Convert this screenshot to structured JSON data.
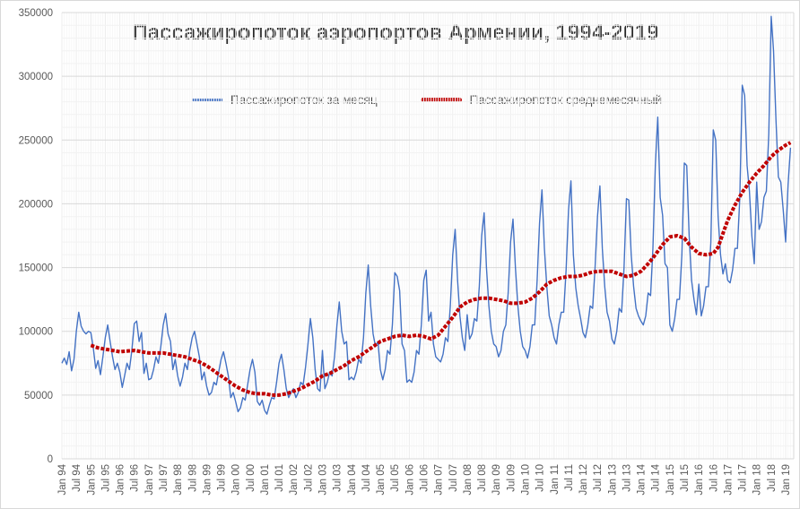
{
  "chart_data": {
    "type": "line",
    "title": "Пассажиропоток аэропортов Армении, 1994-2019",
    "xlabel": "",
    "ylabel": "",
    "x_range": "Jan 1994 – Mar 2019",
    "x_tick_step_months": 6,
    "ylim": [
      0,
      350000
    ],
    "y_tick_step": 50000,
    "grid": true,
    "legend_position": "top",
    "y_tick_labels": [
      "0",
      "50000",
      "100000",
      "150000",
      "200000",
      "250000",
      "300000",
      "350000"
    ],
    "x_tick_labels": [
      "Jan 94",
      "Jul 94",
      "Jan 95",
      "Jul 95",
      "Jan 96",
      "Jul 96",
      "Jan 97",
      "Jul 97",
      "Jan 98",
      "Jul 98",
      "Jan 99",
      "Jul 99",
      "Jan 00",
      "Jul 00",
      "Jan 01",
      "Jul 01",
      "Jan 02",
      "Jul 02",
      "Jan 03",
      "Jul 03",
      "Jan 04",
      "Jul 04",
      "Jan 05",
      "Jul 05",
      "Jan 06",
      "Jul 06",
      "Jan 07",
      "Jul 07",
      "Jan 08",
      "Jul 08",
      "Jan 09",
      "Jul 09",
      "Jan 10",
      "Jul 10",
      "Jan 11",
      "Jul 11",
      "Jan 12",
      "Jul 12",
      "Jan 13",
      "Jul 13",
      "Jan 14",
      "Jul 14",
      "Jan 15",
      "Jul 15",
      "Jan 16",
      "Jul 16",
      "Jan 17",
      "Jul 17",
      "Jan 18",
      "Jul 18",
      "Jan 19"
    ],
    "series": [
      {
        "name": "Пассажиропоток за месяц",
        "color": "#4472C4",
        "style": "thin-solid",
        "start_month": 0,
        "values": [
          75000,
          79000,
          74000,
          84000,
          69000,
          78000,
          100000,
          115000,
          104000,
          100000,
          98000,
          100000,
          99000,
          87000,
          71000,
          77000,
          66000,
          80000,
          95000,
          105000,
          92000,
          80000,
          70000,
          75000,
          68000,
          56000,
          65000,
          75000,
          70000,
          85000,
          106000,
          108000,
          92000,
          99000,
          67000,
          75000,
          62000,
          63000,
          70000,
          80000,
          75000,
          88000,
          105000,
          114000,
          98000,
          92000,
          70000,
          78000,
          65000,
          57000,
          64000,
          75000,
          70000,
          85000,
          95000,
          100000,
          90000,
          80000,
          62000,
          68000,
          57000,
          50000,
          52000,
          60000,
          58000,
          68000,
          78000,
          84000,
          75000,
          65000,
          48000,
          52000,
          45000,
          37000,
          40000,
          48000,
          46000,
          58000,
          70000,
          78000,
          68000,
          45000,
          42000,
          46000,
          38000,
          35000,
          42000,
          48000,
          47000,
          60000,
          75000,
          82000,
          70000,
          55000,
          48000,
          52000,
          55000,
          48000,
          52000,
          60000,
          58000,
          72000,
          90000,
          110000,
          95000,
          70000,
          55000,
          53000,
          85000,
          55000,
          60000,
          68000,
          65000,
          80000,
          105000,
          123000,
          100000,
          90000,
          92000,
          62000,
          64000,
          62000,
          68000,
          78000,
          75000,
          95000,
          130000,
          152000,
          120000,
          98000,
          88000,
          92000,
          70000,
          62000,
          70000,
          85000,
          82000,
          105000,
          146000,
          143000,
          132000,
          90000,
          85000,
          60000,
          62000,
          60000,
          68000,
          85000,
          82000,
          105000,
          140000,
          148000,
          108000,
          115000,
          90000,
          80000,
          78000,
          76000,
          82000,
          95000,
          92000,
          120000,
          160000,
          180000,
          140000,
          112000,
          95000,
          85000,
          113000,
          94000,
          98000,
          110000,
          108000,
          135000,
          175000,
          193000,
          150000,
          120000,
          100000,
          90000,
          88000,
          80000,
          85000,
          100000,
          105000,
          130000,
          170000,
          188000,
          150000,
          120000,
          100000,
          88000,
          85000,
          79000,
          88000,
          105000,
          105000,
          140000,
          185000,
          211000,
          165000,
          135000,
          112000,
          105000,
          95000,
          90000,
          105000,
          115000,
          115000,
          148000,
          195000,
          218000,
          160000,
          134000,
          120000,
          110000,
          99000,
          95000,
          105000,
          120000,
          118000,
          150000,
          190000,
          214000,
          165000,
          135000,
          115000,
          108000,
          94000,
          90000,
          100000,
          118000,
          115000,
          150000,
          204000,
          203000,
          160000,
          135000,
          118000,
          112000,
          108000,
          105000,
          112000,
          130000,
          128000,
          165000,
          230000,
          268000,
          205000,
          191000,
          153000,
          150000,
          105000,
          100000,
          110000,
          125000,
          125000,
          160000,
          232000,
          230000,
          175000,
          140000,
          125000,
          113000,
          137000,
          112000,
          120000,
          135000,
          135000,
          170000,
          258000,
          250000,
          190000,
          160000,
          145000,
          153000,
          140000,
          138000,
          148000,
          165000,
          165000,
          205000,
          293000,
          285000,
          230000,
          210000,
          175000,
          153000,
          217000,
          180000,
          186000,
          205000,
          210000,
          255000,
          347000,
          320000,
          266000,
          221000,
          217000,
          195000,
          170000,
          215000,
          244000
        ]
      },
      {
        "name": "Пассажиропоток среднемесячный",
        "color": "#C00000",
        "style": "thick-dashed",
        "anchors": [
          [
            12,
            89000
          ],
          [
            15,
            87000
          ],
          [
            18,
            86000
          ],
          [
            21,
            85000
          ],
          [
            24,
            84000
          ],
          [
            30,
            85000
          ],
          [
            33,
            84000
          ],
          [
            36,
            83000
          ],
          [
            42,
            83000
          ],
          [
            48,
            81000
          ],
          [
            51,
            80000
          ],
          [
            54,
            78000
          ],
          [
            57,
            76000
          ],
          [
            60,
            73000
          ],
          [
            63,
            69000
          ],
          [
            66,
            65000
          ],
          [
            69,
            61000
          ],
          [
            72,
            57000
          ],
          [
            75,
            54000
          ],
          [
            78,
            52000
          ],
          [
            81,
            51000
          ],
          [
            84,
            51000
          ],
          [
            87,
            50000
          ],
          [
            90,
            50000
          ],
          [
            93,
            51000
          ],
          [
            96,
            53000
          ],
          [
            99,
            55000
          ],
          [
            102,
            58000
          ],
          [
            105,
            61000
          ],
          [
            108,
            65000
          ],
          [
            111,
            67000
          ],
          [
            114,
            70000
          ],
          [
            117,
            73000
          ],
          [
            120,
            77000
          ],
          [
            123,
            80000
          ],
          [
            126,
            84000
          ],
          [
            129,
            88000
          ],
          [
            132,
            92000
          ],
          [
            135,
            94000
          ],
          [
            138,
            96000
          ],
          [
            141,
            97000
          ],
          [
            144,
            96000
          ],
          [
            147,
            97000
          ],
          [
            150,
            96000
          ],
          [
            153,
            94000
          ],
          [
            156,
            97000
          ],
          [
            159,
            104000
          ],
          [
            162,
            111000
          ],
          [
            165,
            119000
          ],
          [
            168,
            123000
          ],
          [
            171,
            125000
          ],
          [
            174,
            126000
          ],
          [
            177,
            126000
          ],
          [
            180,
            125000
          ],
          [
            183,
            124000
          ],
          [
            186,
            122000
          ],
          [
            189,
            122000
          ],
          [
            192,
            123000
          ],
          [
            195,
            126000
          ],
          [
            198,
            131000
          ],
          [
            201,
            137000
          ],
          [
            204,
            140000
          ],
          [
            207,
            142000
          ],
          [
            210,
            143000
          ],
          [
            213,
            143000
          ],
          [
            216,
            144000
          ],
          [
            219,
            146000
          ],
          [
            222,
            147000
          ],
          [
            225,
            147000
          ],
          [
            228,
            147000
          ],
          [
            231,
            145000
          ],
          [
            234,
            143000
          ],
          [
            237,
            144000
          ],
          [
            240,
            147000
          ],
          [
            243,
            153000
          ],
          [
            246,
            160000
          ],
          [
            249,
            168000
          ],
          [
            252,
            174000
          ],
          [
            255,
            175000
          ],
          [
            258,
            173000
          ],
          [
            261,
            166000
          ],
          [
            264,
            161000
          ],
          [
            267,
            160000
          ],
          [
            270,
            161000
          ],
          [
            272,
            166000
          ],
          [
            275,
            182000
          ],
          [
            276,
            187000
          ],
          [
            279,
            199000
          ],
          [
            282,
            209000
          ],
          [
            285,
            217000
          ],
          [
            288,
            224000
          ],
          [
            291,
            230000
          ],
          [
            294,
            237000
          ],
          [
            297,
            242000
          ],
          [
            300,
            246000
          ],
          [
            302,
            248000
          ]
        ]
      }
    ]
  }
}
